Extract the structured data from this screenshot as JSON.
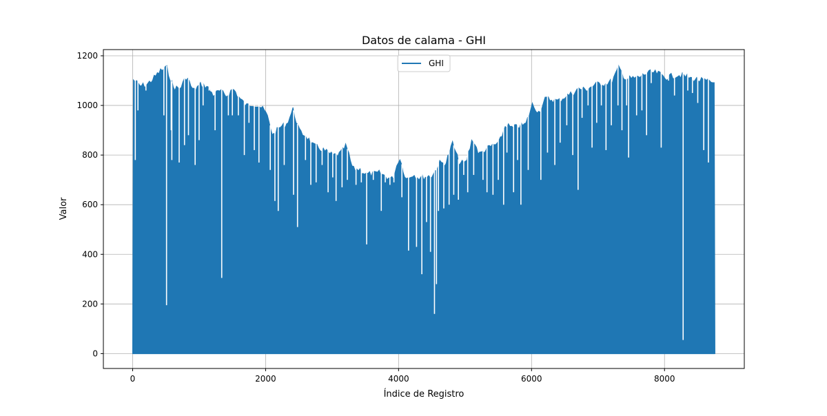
{
  "chart_data": {
    "type": "line",
    "title": "Datos de calama - GHI",
    "xlabel": "Índice de Registro",
    "ylabel": "Valor",
    "xlim": [
      -440,
      9200
    ],
    "ylim": [
      -60,
      1225
    ],
    "xticks": [
      0,
      2000,
      4000,
      6000,
      8000
    ],
    "yticks": [
      0,
      200,
      400,
      600,
      800,
      1000,
      1200
    ],
    "grid": true,
    "legend": {
      "position": "top-center",
      "entries": [
        "GHI"
      ]
    },
    "series": [
      {
        "name": "GHI",
        "color": "#1f77b4",
        "x_start": 0,
        "x_end": 8759,
        "min": 0,
        "daily_peak_envelope": [
          {
            "x": 0,
            "y": 1115
          },
          {
            "x": 100,
            "y": 1090
          },
          {
            "x": 200,
            "y": 1095
          },
          {
            "x": 300,
            "y": 1120
          },
          {
            "x": 400,
            "y": 1150
          },
          {
            "x": 500,
            "y": 1165
          },
          {
            "x": 600,
            "y": 1085
          },
          {
            "x": 700,
            "y": 1080
          },
          {
            "x": 800,
            "y": 1130
          },
          {
            "x": 900,
            "y": 1070
          },
          {
            "x": 1000,
            "y": 1095
          },
          {
            "x": 1100,
            "y": 1090
          },
          {
            "x": 1200,
            "y": 1055
          },
          {
            "x": 1300,
            "y": 1070
          },
          {
            "x": 1400,
            "y": 1050
          },
          {
            "x": 1500,
            "y": 1080
          },
          {
            "x": 1600,
            "y": 1040
          },
          {
            "x": 1700,
            "y": 1010
          },
          {
            "x": 1800,
            "y": 1020
          },
          {
            "x": 1900,
            "y": 1010
          },
          {
            "x": 2000,
            "y": 980
          },
          {
            "x": 2100,
            "y": 890
          },
          {
            "x": 2200,
            "y": 925
          },
          {
            "x": 2300,
            "y": 935
          },
          {
            "x": 2400,
            "y": 995
          },
          {
            "x": 2500,
            "y": 905
          },
          {
            "x": 2600,
            "y": 890
          },
          {
            "x": 2700,
            "y": 850
          },
          {
            "x": 2800,
            "y": 840
          },
          {
            "x": 2900,
            "y": 825
          },
          {
            "x": 3000,
            "y": 810
          },
          {
            "x": 3100,
            "y": 815
          },
          {
            "x": 3200,
            "y": 850
          },
          {
            "x": 3300,
            "y": 755
          },
          {
            "x": 3400,
            "y": 755
          },
          {
            "x": 3500,
            "y": 735
          },
          {
            "x": 3600,
            "y": 735
          },
          {
            "x": 3700,
            "y": 740
          },
          {
            "x": 3800,
            "y": 725
          },
          {
            "x": 3900,
            "y": 715
          },
          {
            "x": 4000,
            "y": 805
          },
          {
            "x": 4100,
            "y": 715
          },
          {
            "x": 4200,
            "y": 735
          },
          {
            "x": 4300,
            "y": 720
          },
          {
            "x": 4400,
            "y": 725
          },
          {
            "x": 4500,
            "y": 730
          },
          {
            "x": 4600,
            "y": 780
          },
          {
            "x": 4700,
            "y": 780
          },
          {
            "x": 4800,
            "y": 860
          },
          {
            "x": 4900,
            "y": 780
          },
          {
            "x": 5000,
            "y": 780
          },
          {
            "x": 5100,
            "y": 880
          },
          {
            "x": 5200,
            "y": 815
          },
          {
            "x": 5300,
            "y": 835
          },
          {
            "x": 5400,
            "y": 850
          },
          {
            "x": 5500,
            "y": 860
          },
          {
            "x": 5600,
            "y": 935
          },
          {
            "x": 5700,
            "y": 920
          },
          {
            "x": 5800,
            "y": 930
          },
          {
            "x": 5900,
            "y": 935
          },
          {
            "x": 6000,
            "y": 1015
          },
          {
            "x": 6100,
            "y": 985
          },
          {
            "x": 6200,
            "y": 1040
          },
          {
            "x": 6300,
            "y": 1035
          },
          {
            "x": 6400,
            "y": 1030
          },
          {
            "x": 6500,
            "y": 1050
          },
          {
            "x": 6600,
            "y": 1060
          },
          {
            "x": 6700,
            "y": 1080
          },
          {
            "x": 6800,
            "y": 1075
          },
          {
            "x": 6900,
            "y": 1090
          },
          {
            "x": 7000,
            "y": 1100
          },
          {
            "x": 7100,
            "y": 1100
          },
          {
            "x": 7200,
            "y": 1110
          },
          {
            "x": 7300,
            "y": 1165
          },
          {
            "x": 7400,
            "y": 1120
          },
          {
            "x": 7500,
            "y": 1120
          },
          {
            "x": 7600,
            "y": 1125
          },
          {
            "x": 7700,
            "y": 1140
          },
          {
            "x": 7800,
            "y": 1145
          },
          {
            "x": 7900,
            "y": 1140
          },
          {
            "x": 8000,
            "y": 1125
          },
          {
            "x": 8100,
            "y": 1130
          },
          {
            "x": 8200,
            "y": 1135
          },
          {
            "x": 8300,
            "y": 1130
          },
          {
            "x": 8400,
            "y": 1120
          },
          {
            "x": 8500,
            "y": 1115
          },
          {
            "x": 8600,
            "y": 1110
          },
          {
            "x": 8700,
            "y": 1105
          },
          {
            "x": 8759,
            "y": 1105
          }
        ],
        "cloudy_day_dips": [
          {
            "x": 40,
            "y": 780
          },
          {
            "x": 80,
            "y": 980
          },
          {
            "x": 200,
            "y": 1060
          },
          {
            "x": 470,
            "y": 960
          },
          {
            "x": 510,
            "y": 195
          },
          {
            "x": 580,
            "y": 900
          },
          {
            "x": 590,
            "y": 780
          },
          {
            "x": 700,
            "y": 770
          },
          {
            "x": 780,
            "y": 840
          },
          {
            "x": 840,
            "y": 880
          },
          {
            "x": 940,
            "y": 760
          },
          {
            "x": 1000,
            "y": 860
          },
          {
            "x": 1060,
            "y": 1000
          },
          {
            "x": 1150,
            "y": 1060
          },
          {
            "x": 1240,
            "y": 900
          },
          {
            "x": 1340,
            "y": 305
          },
          {
            "x": 1440,
            "y": 960
          },
          {
            "x": 1500,
            "y": 960
          },
          {
            "x": 1590,
            "y": 960
          },
          {
            "x": 1680,
            "y": 800
          },
          {
            "x": 1750,
            "y": 930
          },
          {
            "x": 1830,
            "y": 820
          },
          {
            "x": 1900,
            "y": 770
          },
          {
            "x": 2070,
            "y": 740
          },
          {
            "x": 2140,
            "y": 615
          },
          {
            "x": 2190,
            "y": 575
          },
          {
            "x": 2280,
            "y": 760
          },
          {
            "x": 2420,
            "y": 640
          },
          {
            "x": 2480,
            "y": 510
          },
          {
            "x": 2600,
            "y": 780
          },
          {
            "x": 2680,
            "y": 680
          },
          {
            "x": 2760,
            "y": 690
          },
          {
            "x": 2850,
            "y": 760
          },
          {
            "x": 2940,
            "y": 650
          },
          {
            "x": 3010,
            "y": 710
          },
          {
            "x": 3060,
            "y": 615
          },
          {
            "x": 3150,
            "y": 670
          },
          {
            "x": 3230,
            "y": 700
          },
          {
            "x": 3360,
            "y": 680
          },
          {
            "x": 3440,
            "y": 690
          },
          {
            "x": 3520,
            "y": 440
          },
          {
            "x": 3620,
            "y": 700
          },
          {
            "x": 3740,
            "y": 575
          },
          {
            "x": 3800,
            "y": 690
          },
          {
            "x": 3870,
            "y": 680
          },
          {
            "x": 3930,
            "y": 690
          },
          {
            "x": 4050,
            "y": 630
          },
          {
            "x": 4150,
            "y": 415
          },
          {
            "x": 4270,
            "y": 430
          },
          {
            "x": 4350,
            "y": 320
          },
          {
            "x": 4420,
            "y": 530
          },
          {
            "x": 4480,
            "y": 410
          },
          {
            "x": 4540,
            "y": 160
          },
          {
            "x": 4570,
            "y": 280
          },
          {
            "x": 4600,
            "y": 575
          },
          {
            "x": 4680,
            "y": 585
          },
          {
            "x": 4760,
            "y": 600
          },
          {
            "x": 4830,
            "y": 640
          },
          {
            "x": 4900,
            "y": 620
          },
          {
            "x": 4980,
            "y": 720
          },
          {
            "x": 5040,
            "y": 650
          },
          {
            "x": 5130,
            "y": 720
          },
          {
            "x": 5270,
            "y": 700
          },
          {
            "x": 5330,
            "y": 650
          },
          {
            "x": 5420,
            "y": 640
          },
          {
            "x": 5500,
            "y": 700
          },
          {
            "x": 5580,
            "y": 600
          },
          {
            "x": 5630,
            "y": 810
          },
          {
            "x": 5730,
            "y": 650
          },
          {
            "x": 5790,
            "y": 780
          },
          {
            "x": 5840,
            "y": 600
          },
          {
            "x": 5950,
            "y": 740
          },
          {
            "x": 6140,
            "y": 700
          },
          {
            "x": 6240,
            "y": 810
          },
          {
            "x": 6350,
            "y": 760
          },
          {
            "x": 6430,
            "y": 850
          },
          {
            "x": 6530,
            "y": 920
          },
          {
            "x": 6620,
            "y": 800
          },
          {
            "x": 6700,
            "y": 660
          },
          {
            "x": 6760,
            "y": 950
          },
          {
            "x": 6850,
            "y": 1000
          },
          {
            "x": 6910,
            "y": 830
          },
          {
            "x": 6980,
            "y": 930
          },
          {
            "x": 7050,
            "y": 1000
          },
          {
            "x": 7120,
            "y": 820
          },
          {
            "x": 7200,
            "y": 920
          },
          {
            "x": 7300,
            "y": 1000
          },
          {
            "x": 7360,
            "y": 900
          },
          {
            "x": 7430,
            "y": 1000
          },
          {
            "x": 7460,
            "y": 790
          },
          {
            "x": 7580,
            "y": 960
          },
          {
            "x": 7660,
            "y": 980
          },
          {
            "x": 7730,
            "y": 880
          },
          {
            "x": 7800,
            "y": 1090
          },
          {
            "x": 7950,
            "y": 830
          },
          {
            "x": 8060,
            "y": 1100
          },
          {
            "x": 8150,
            "y": 1040
          },
          {
            "x": 8280,
            "y": 55
          },
          {
            "x": 8350,
            "y": 1060
          },
          {
            "x": 8420,
            "y": 1050
          },
          {
            "x": 8500,
            "y": 1010
          },
          {
            "x": 8590,
            "y": 820
          },
          {
            "x": 8660,
            "y": 770
          },
          {
            "x": 8720,
            "y": 1100
          }
        ]
      }
    ]
  }
}
